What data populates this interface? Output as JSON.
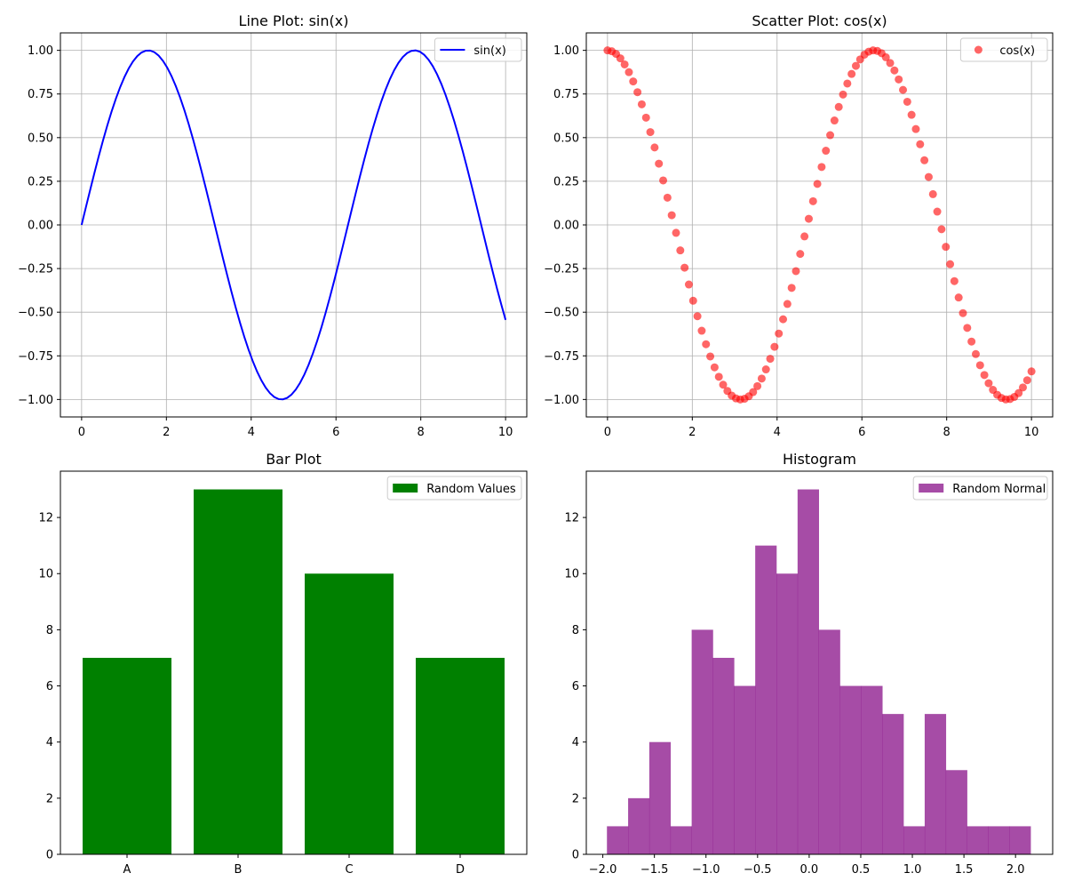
{
  "chart_data": [
    {
      "type": "line",
      "title": "Line Plot: sin(x)",
      "xlabel": "",
      "ylabel": "",
      "xlim": [
        -0.5,
        10.5
      ],
      "ylim": [
        -1.1,
        1.1
      ],
      "xticks": [
        0,
        2,
        4,
        6,
        8,
        10
      ],
      "xtick_labels": [
        "0",
        "2",
        "4",
        "6",
        "8",
        "10"
      ],
      "yticks": [
        -1.0,
        -0.75,
        -0.5,
        -0.25,
        0.0,
        0.25,
        0.5,
        0.75,
        1.0
      ],
      "ytick_labels": [
        "−1.00",
        "−0.75",
        "−0.50",
        "−0.25",
        "0.00",
        "0.25",
        "0.50",
        "0.75",
        "1.00"
      ],
      "grid": true,
      "legend_position": "top-right",
      "series": [
        {
          "name": "sin(x)",
          "color": "#0000ff",
          "function": "sin",
          "x_range": [
            0,
            10
          ],
          "n_points": 100
        }
      ]
    },
    {
      "type": "scatter",
      "title": "Scatter Plot: cos(x)",
      "xlabel": "",
      "ylabel": "",
      "xlim": [
        -0.5,
        10.5
      ],
      "ylim": [
        -1.1,
        1.1
      ],
      "xticks": [
        0,
        2,
        4,
        6,
        8,
        10
      ],
      "xtick_labels": [
        "0",
        "2",
        "4",
        "6",
        "8",
        "10"
      ],
      "yticks": [
        -1.0,
        -0.75,
        -0.5,
        -0.25,
        0.0,
        0.25,
        0.5,
        0.75,
        1.0
      ],
      "ytick_labels": [
        "−1.00",
        "−0.75",
        "−0.50",
        "−0.25",
        "0.00",
        "0.25",
        "0.50",
        "0.75",
        "1.00"
      ],
      "grid": true,
      "legend_position": "top-right",
      "series": [
        {
          "name": "cos(x)",
          "color": "#ff0000",
          "alpha": 0.6,
          "function": "cos",
          "x_range": [
            0,
            10
          ],
          "n_points": 100
        }
      ]
    },
    {
      "type": "bar",
      "title": "Bar Plot",
      "xlabel": "",
      "ylabel": "",
      "categories": [
        "A",
        "B",
        "C",
        "D"
      ],
      "values": [
        7,
        13,
        10,
        7
      ],
      "ylim": [
        0,
        13.65
      ],
      "yticks": [
        0,
        2,
        4,
        6,
        8,
        10,
        12
      ],
      "ytick_labels": [
        "0",
        "2",
        "4",
        "6",
        "8",
        "10",
        "12"
      ],
      "grid": false,
      "legend_position": "top-right",
      "series": [
        {
          "name": "Random Values",
          "color": "#008000"
        }
      ]
    },
    {
      "type": "bar",
      "title": "Histogram",
      "xlabel": "",
      "ylabel": "",
      "bin_start": -1.96,
      "bin_width": 0.2053,
      "counts": [
        1,
        2,
        4,
        1,
        8,
        7,
        6,
        11,
        10,
        13,
        8,
        6,
        6,
        5,
        1,
        5,
        3,
        1,
        1,
        1
      ],
      "xlim": [
        -2.16,
        2.36
      ],
      "ylim": [
        0,
        13.65
      ],
      "xticks": [
        -2.0,
        -1.5,
        -1.0,
        -0.5,
        0.0,
        0.5,
        1.0,
        1.5,
        2.0
      ],
      "xtick_labels": [
        "−2.0",
        "−1.5",
        "−1.0",
        "−0.5",
        "0.0",
        "0.5",
        "1.0",
        "1.5",
        "2.0"
      ],
      "yticks": [
        0,
        2,
        4,
        6,
        8,
        10,
        12
      ],
      "ytick_labels": [
        "0",
        "2",
        "4",
        "6",
        "8",
        "10",
        "12"
      ],
      "grid": false,
      "legend_position": "top-right",
      "series": [
        {
          "name": "Random Normal",
          "color": "#800080",
          "alpha": 0.7
        }
      ]
    }
  ]
}
